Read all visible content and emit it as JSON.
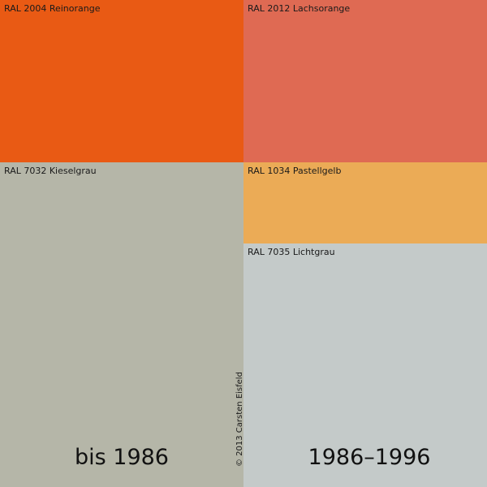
{
  "swatches": [
    {
      "label": "RAL 2004 Reinorange",
      "color": "#e95a14"
    },
    {
      "label": "RAL 2012 Lachsorange",
      "color": "#df6a53"
    },
    {
      "label": "RAL 7032 Kieselgrau",
      "color": "#b5b6a8"
    },
    {
      "label": "RAL 1034 Pastellgelb",
      "color": "#ebab56"
    },
    {
      "label": "RAL 7035 Lichtgrau",
      "color": "#c4cac9"
    }
  ],
  "periods": {
    "left": "bis 1986",
    "right": "1986–1996"
  },
  "copyright": "© 2013 Carsten Eisfeld"
}
